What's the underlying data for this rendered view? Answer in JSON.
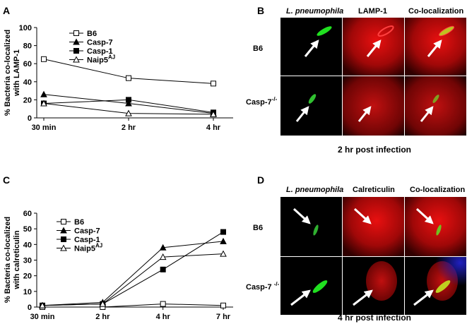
{
  "chart_data": [
    {
      "type": "line",
      "panel": "A",
      "ylabel": [
        "% Bacteria co-localized",
        "with LAMP-1"
      ],
      "categories": [
        "30 min",
        "2 hr",
        "4 hr"
      ],
      "ylim": [
        0,
        100
      ],
      "yticks": [
        0,
        20,
        40,
        60,
        80,
        100
      ],
      "series": [
        {
          "name": "B6",
          "marker": "open-square",
          "color": "#000000",
          "values": [
            65,
            44,
            38
          ]
        },
        {
          "name": "Casp-7",
          "marker": "filled-triangle",
          "color": "#000000",
          "values": [
            26,
            16,
            5
          ]
        },
        {
          "name": "Casp-1",
          "marker": "filled-square",
          "color": "#000000",
          "values": [
            16,
            20,
            6
          ]
        },
        {
          "name": "Naip5",
          "superscript": "AJ",
          "marker": "open-triangle",
          "color": "#000000",
          "values": [
            16,
            5,
            4
          ]
        }
      ]
    },
    {
      "type": "line",
      "panel": "C",
      "ylabel": [
        "% Bacteria co-localized",
        "with calreticulin"
      ],
      "categories": [
        "30 min",
        "2 hr",
        "4 hr",
        "7 hr"
      ],
      "ylim": [
        0,
        60
      ],
      "yticks": [
        0,
        10,
        20,
        30,
        40,
        50,
        60
      ],
      "series": [
        {
          "name": "B6",
          "marker": "open-square",
          "color": "#000000",
          "values": [
            0,
            0,
            2,
            1
          ]
        },
        {
          "name": "Casp-7",
          "marker": "filled-triangle",
          "color": "#000000",
          "values": [
            1,
            3,
            38,
            42
          ]
        },
        {
          "name": "Casp-1",
          "marker": "filled-square",
          "color": "#000000",
          "values": [
            1,
            2,
            24,
            48
          ]
        },
        {
          "name": "Naip5",
          "superscript": "AJ",
          "marker": "open-triangle",
          "color": "#000000",
          "values": [
            1,
            2,
            32,
            34
          ]
        }
      ]
    }
  ],
  "panel_b": {
    "label": "B",
    "columns": [
      "L. pneumophila",
      "LAMP-1",
      "Co-localization"
    ],
    "rows": [
      "B6",
      {
        "text": "Casp-7",
        "superscript": "-/-"
      }
    ],
    "caption": "2 hr post infection"
  },
  "panel_d": {
    "label": "D",
    "columns": [
      "L. pneumophila",
      "Calreticulin",
      "Co-localization"
    ],
    "rows": [
      "B6",
      {
        "text": "Casp-7 ",
        "superscript": "-/-"
      }
    ],
    "caption": "4 hr post infection"
  }
}
